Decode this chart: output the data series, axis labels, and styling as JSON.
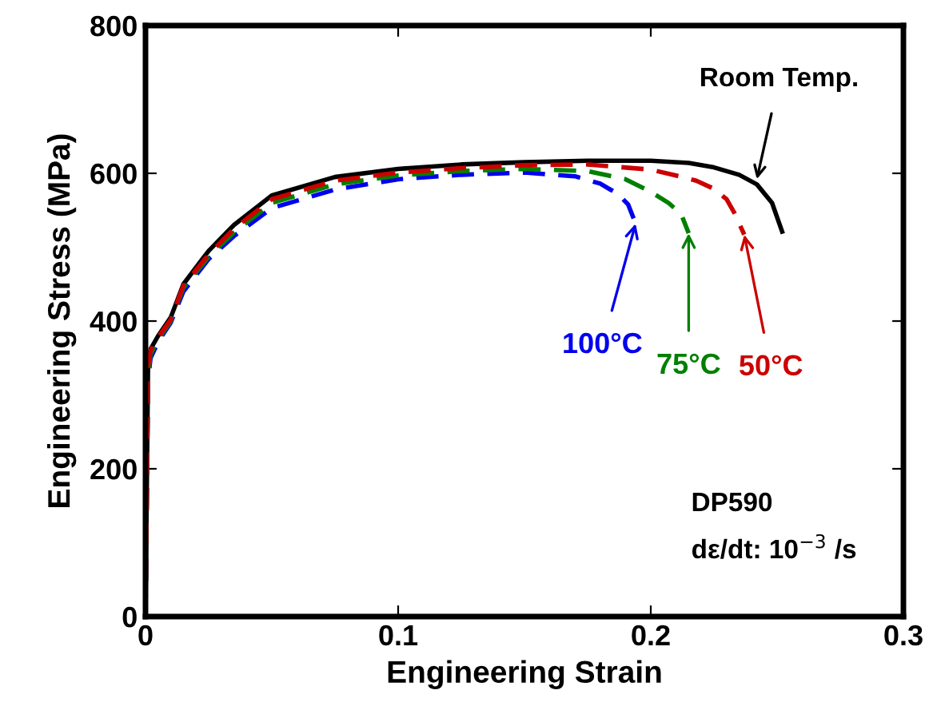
{
  "chart_data": {
    "type": "line",
    "xlabel": "Engineering Strain",
    "ylabel": "Engineering Stress (MPa)",
    "xlim": [
      0,
      0.3
    ],
    "ylim": [
      0,
      800
    ],
    "xticks": [
      0,
      0.1,
      0.2,
      0.3
    ],
    "yticks": [
      0,
      200,
      400,
      600,
      800
    ],
    "grid": false,
    "legend": false,
    "series": [
      {
        "color": "#000000",
        "line_style": "solid",
        "x": [
          0,
          0.001,
          0.002,
          0.005,
          0.01,
          0.015,
          0.025,
          0.035,
          0.05,
          0.075,
          0.1,
          0.125,
          0.15,
          0.175,
          0.2,
          0.215,
          0.225,
          0.235,
          0.242,
          0.248,
          0.252
        ],
        "values": [
          0,
          340,
          362,
          380,
          405,
          450,
          495,
          530,
          570,
          595,
          606,
          612,
          615,
          617,
          617,
          614,
          608,
          598,
          585,
          560,
          521
        ]
      },
      {
        "color": "#0000ee",
        "line_style": "dashed",
        "x": [
          0,
          0.001,
          0.002,
          0.005,
          0.01,
          0.015,
          0.025,
          0.035,
          0.05,
          0.075,
          0.1,
          0.125,
          0.15,
          0.17,
          0.18,
          0.187,
          0.191,
          0.194
        ],
        "values": [
          0,
          320,
          350,
          372,
          398,
          440,
          484,
          515,
          553,
          578,
          592,
          598,
          601,
          596,
          586,
          572,
          558,
          532
        ]
      },
      {
        "color": "#008000",
        "line_style": "dashed",
        "x": [
          0,
          0.001,
          0.002,
          0.005,
          0.01,
          0.015,
          0.025,
          0.035,
          0.05,
          0.075,
          0.1,
          0.125,
          0.15,
          0.175,
          0.19,
          0.2,
          0.207,
          0.212,
          0.215
        ],
        "values": [
          0,
          330,
          355,
          375,
          400,
          445,
          487,
          520,
          560,
          585,
          597,
          603,
          606,
          603,
          592,
          575,
          560,
          545,
          519
        ]
      },
      {
        "color": "#cc0000",
        "line_style": "dashed",
        "x": [
          0,
          0.001,
          0.002,
          0.005,
          0.01,
          0.015,
          0.025,
          0.035,
          0.05,
          0.075,
          0.1,
          0.125,
          0.15,
          0.175,
          0.2,
          0.21,
          0.218,
          0.225,
          0.23,
          0.233,
          0.237
        ],
        "values": [
          0,
          340,
          360,
          378,
          402,
          448,
          490,
          525,
          565,
          590,
          601,
          607,
          611,
          612,
          605,
          597,
          590,
          579,
          565,
          547,
          517
        ]
      }
    ],
    "annotations": [
      {
        "text": "Room Temp.",
        "x": 0.242,
        "y": 592
      },
      {
        "text": "100°C",
        "x": 0.194,
        "y": 532
      },
      {
        "text": "75°C",
        "x": 0.215,
        "y": 519
      },
      {
        "text": "50°C",
        "x": 0.237,
        "y": 517
      },
      "DP590",
      "dε/dt: 10$^{−3}$ /s"
    ]
  }
}
